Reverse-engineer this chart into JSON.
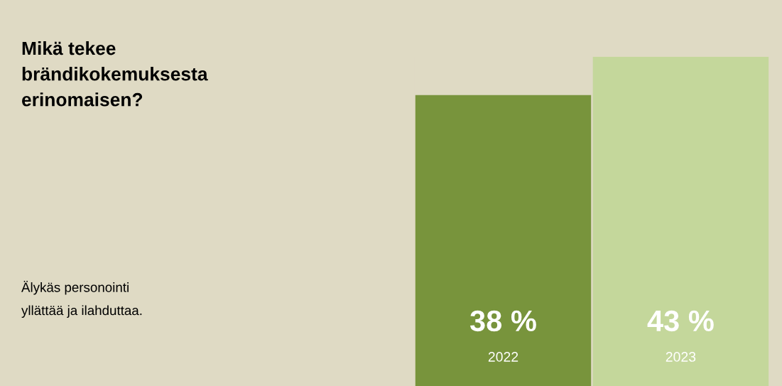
{
  "chart_data": {
    "type": "bar",
    "title": "Mikä tekee\nbrändikokemuksesta\nerinomaisen?",
    "annotations": [
      "Älykäs personointi\nyllättää ja ilahduttaa."
    ],
    "categories": [
      "2022",
      "2023"
    ],
    "values": [
      38,
      43
    ],
    "colors": [
      "#78943c",
      "#c4d79b"
    ],
    "value_labels": [
      "38 %",
      "43 %"
    ],
    "tick_labels": false,
    "grid": false,
    "legend": false
  }
}
